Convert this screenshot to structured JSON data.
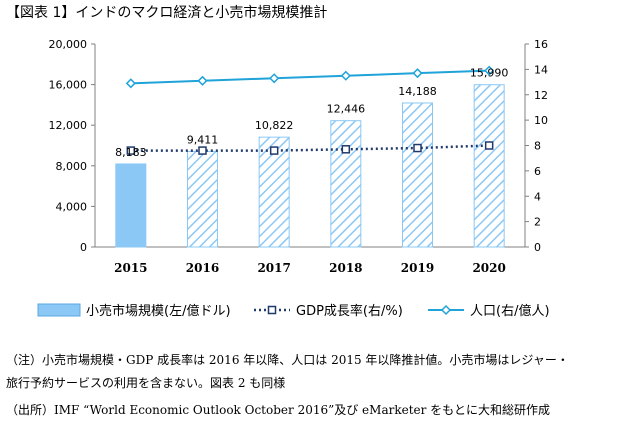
{
  "title": "【図表 1】インドのマクロ経済と小売市場規模推計",
  "chart_data": {
    "type": "bar+line",
    "categories": [
      "2015",
      "2016",
      "2017",
      "2018",
      "2019",
      "2020"
    ],
    "y_left": {
      "ticks": [
        "0",
        "4,000",
        "8,000",
        "12,000",
        "16,000",
        "20,000"
      ],
      "lim": [
        0,
        20000
      ]
    },
    "y_right": {
      "ticks": [
        "0",
        "2",
        "4",
        "6",
        "8",
        "10",
        "12",
        "14",
        "16"
      ],
      "lim": [
        0,
        16
      ]
    },
    "series": [
      {
        "name": "小売市場規模(左/億ドル)",
        "type": "bar",
        "axis": "left",
        "values": [
          8183,
          9411,
          10822,
          12446,
          14188,
          15990
        ],
        "labels": [
          "8,183",
          "9,411",
          "10,822",
          "12,446",
          "14,188",
          "15,990"
        ],
        "fill": [
          "solid",
          "hatched",
          "hatched",
          "hatched",
          "hatched",
          "hatched"
        ],
        "color": "#8cc8f5"
      },
      {
        "name": "GDP成長率(右/%)",
        "type": "line",
        "axis": "right",
        "style": "dotted",
        "marker": "square",
        "values": [
          7.6,
          7.6,
          7.6,
          7.7,
          7.8,
          8.0
        ],
        "color": "#1f3a6b"
      },
      {
        "name": "人口(右/億人)",
        "type": "line",
        "axis": "right",
        "style": "solid",
        "marker": "diamond",
        "values": [
          12.9,
          13.1,
          13.3,
          13.5,
          13.7,
          13.9
        ],
        "color": "#1fa3d8"
      }
    ],
    "grid": false,
    "legend": "bottom"
  },
  "notes": {
    "line1": "（注）小売市場規模・GDP 成長率は 2016 年以降、人口は 2015 年以降推計値。小売市場はレジャー・",
    "line2": "旅行予約サービスの利用を含まない。図表 2 も同様",
    "line3": "（出所）IMF “World Economic Outlook October 2016”及び eMarketer をもとに大和総研作成"
  }
}
